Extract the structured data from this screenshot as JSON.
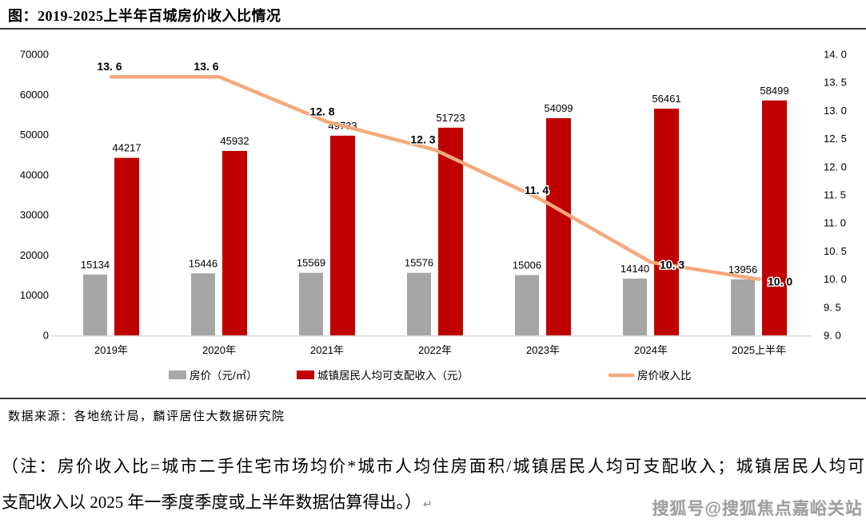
{
  "title": "图：2019-2025上半年百城房价收入比情况",
  "source": "数据来源：各地统计局，麟评居住大数据研究院",
  "note": {
    "line1": "（注：房价收入比=城市二手住宅市场均价*城市人均住房面积/城镇居民人均可支配收入；城镇居民人均可",
    "line2": "支配收入以 2025 年一季度季度或上半年数据估算得出。）",
    "mark": "↵"
  },
  "watermark": "搜狐号@搜狐焦点嘉峪关站",
  "colors": {
    "bar_price": "#A6A6A6",
    "bar_income": "#C00000",
    "ratio_line": "#F4A97C",
    "axis_line": "#D9D9D9",
    "text": "#000000"
  },
  "chart_data": {
    "type": "bar",
    "subtype": "grouped bars + line on secondary axis",
    "title": "图：2019-2025上半年百城房价收入比情况",
    "categories": [
      "2019年",
      "2020年",
      "2021年",
      "2022年",
      "2023年",
      "2024年",
      "2025上半年"
    ],
    "series": [
      {
        "name": "房价（元/㎡）",
        "type": "bar",
        "axis": "left",
        "color": "#A6A6A6",
        "values": [
          15134,
          15446,
          15569,
          15576,
          15006,
          14140,
          13956
        ],
        "labels": [
          "15134",
          "15446",
          "15569",
          "15576",
          "15006",
          "14140",
          "13956"
        ]
      },
      {
        "name": "城镇居民人均可支配收入（元）",
        "type": "bar",
        "axis": "left",
        "color": "#C00000",
        "values": [
          44217,
          45932,
          49733,
          51723,
          54099,
          56461,
          58499
        ],
        "labels": [
          "44217",
          "45932",
          "49733",
          "51723",
          "54099",
          "56461",
          "58499"
        ]
      },
      {
        "name": "房价收入比",
        "type": "line",
        "axis": "right",
        "color": "#F4A97C",
        "values": [
          13.6,
          13.6,
          12.8,
          12.3,
          11.4,
          10.3,
          10.0
        ],
        "labels": [
          "13. 6",
          "13. 6",
          "12. 8",
          "12. 3",
          "11. 4",
          "10. 3",
          "10. 0"
        ],
        "label_pos": [
          "above",
          "above",
          "above",
          "above",
          "above",
          "right",
          "right"
        ],
        "label_dx": [
          -2,
          -16,
          -6,
          -15,
          -8,
          0,
          0
        ]
      }
    ],
    "left_axis": {
      "min": 0,
      "max": 70000,
      "step": 10000,
      "ticks": [
        "0",
        "10000",
        "20000",
        "30000",
        "40000",
        "50000",
        "60000",
        "70000"
      ]
    },
    "right_axis": {
      "min": 9.0,
      "max": 14.0,
      "step": 0.5,
      "ticks": [
        "9. 0",
        "9. 5",
        "10. 0",
        "10. 5",
        "11. 0",
        "11. 5",
        "12. 0",
        "12. 5",
        "13. 0",
        "13. 5",
        "14. 0"
      ]
    },
    "legend": [
      "房价（元/㎡）",
      "城镇居民人均可支配收入（元）",
      "房价收入比"
    ],
    "legend_position": "bottom",
    "grid": "off"
  }
}
